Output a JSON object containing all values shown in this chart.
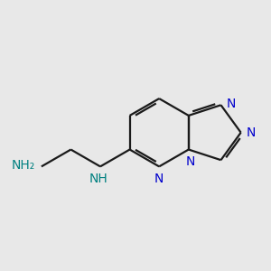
{
  "bg_color": "#e8e8e8",
  "bond_color": "#1a1a1a",
  "N_color_ring": "#0000cc",
  "N_color_chain": "#008080",
  "bond_width": 1.6,
  "font_size_ring": 10,
  "font_size_chain": 10,
  "figsize": [
    3.0,
    3.0
  ],
  "dpi": 100,
  "xlim": [
    0.5,
    9.5
  ],
  "ylim": [
    2.0,
    8.0
  ],
  "bl": 1.15
}
